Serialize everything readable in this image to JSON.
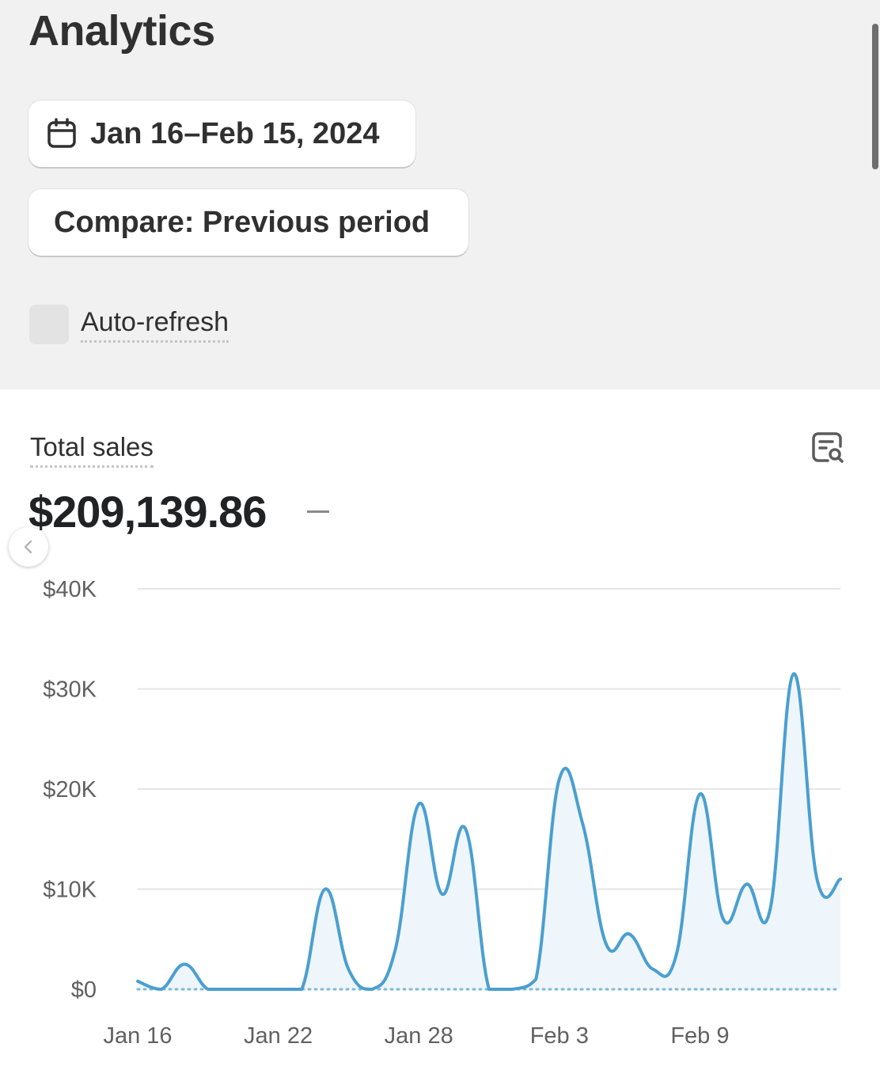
{
  "page": {
    "title": "Analytics",
    "date_range_label": "Jan 16–Feb 15, 2024",
    "compare_label": "Compare: Previous period",
    "auto_refresh_label": "Auto-refresh"
  },
  "metric": {
    "label": "Total sales",
    "value": "$209,139.86",
    "change": "–"
  },
  "colors": {
    "line": "#4a9fd0",
    "fill": "#eef6fb",
    "grid": "#e6e6e6",
    "baseline_dots": "#7db8dc"
  },
  "icons": {
    "date": "calendar-icon",
    "explore": "chart-explore-icon",
    "back": "chevron-left-icon"
  },
  "chart_data": {
    "type": "line",
    "ylim": [
      0,
      40000
    ],
    "y_ticks": [
      0,
      10000,
      20000,
      30000,
      40000
    ],
    "y_tick_labels": [
      "$0",
      "$10K",
      "$20K",
      "$30K",
      "$40K"
    ],
    "x_tick_labels": [
      "Jan 16",
      "Jan 22",
      "Jan 28",
      "Feb 3",
      "Feb 9"
    ],
    "x_tick_dates": [
      "2024-01-16",
      "2024-01-22",
      "2024-01-28",
      "2024-02-03",
      "2024-02-09"
    ],
    "grid": true,
    "series": [
      {
        "x": [
          "2024-01-16",
          "2024-01-17",
          "2024-01-18",
          "2024-01-19",
          "2024-01-20",
          "2024-01-21",
          "2024-01-22",
          "2024-01-23",
          "2024-01-24",
          "2024-01-25",
          "2024-01-26",
          "2024-01-27",
          "2024-01-28",
          "2024-01-29",
          "2024-01-30",
          "2024-01-31",
          "2024-02-01",
          "2024-02-02",
          "2024-02-03",
          "2024-02-04",
          "2024-02-05",
          "2024-02-06",
          "2024-02-07",
          "2024-02-08",
          "2024-02-09",
          "2024-02-10",
          "2024-02-11",
          "2024-02-12",
          "2024-02-13",
          "2024-02-14",
          "2024-02-15"
        ],
        "values": [
          800,
          0,
          2500,
          0,
          0,
          0,
          0,
          0,
          10000,
          2000,
          0,
          4000,
          18500,
          9500,
          16000,
          0,
          0,
          1000,
          21000,
          16500,
          4500,
          5500,
          2000,
          3500,
          19500,
          7000,
          10500,
          8000,
          31500,
          11000,
          11000
        ]
      }
    ]
  }
}
